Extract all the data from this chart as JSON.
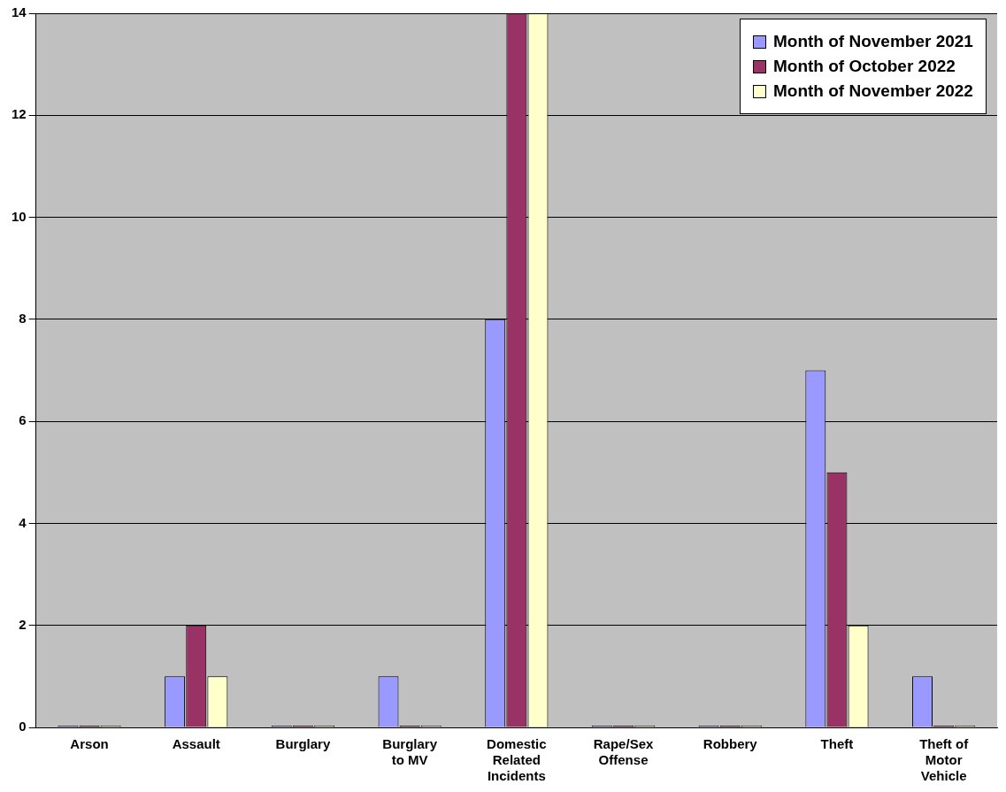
{
  "chart_data": {
    "type": "bar",
    "categories": [
      "Arson",
      "Assault",
      "Burglary",
      "Burglary to MV",
      "Domestic Related Incidents",
      "Rape/Sex Offense",
      "Robbery",
      "Theft",
      "Theft of Motor Vehicle"
    ],
    "series": [
      {
        "name": "Month of November 2021",
        "color": "#9999ff",
        "values": [
          0,
          1,
          0,
          1,
          8,
          0,
          0,
          7,
          1
        ]
      },
      {
        "name": "Month of October 2022",
        "color": "#993366",
        "values": [
          0,
          2,
          0,
          0,
          14,
          0,
          0,
          5,
          0
        ]
      },
      {
        "name": "Month of November 2022",
        "color": "#ffffcc",
        "values": [
          0,
          1,
          0,
          0,
          14,
          0,
          0,
          2,
          0
        ]
      }
    ],
    "ylim": [
      0,
      14
    ],
    "yticks": [
      0,
      2,
      4,
      6,
      8,
      10,
      12,
      14
    ],
    "grid": "y",
    "legend": "top right"
  }
}
